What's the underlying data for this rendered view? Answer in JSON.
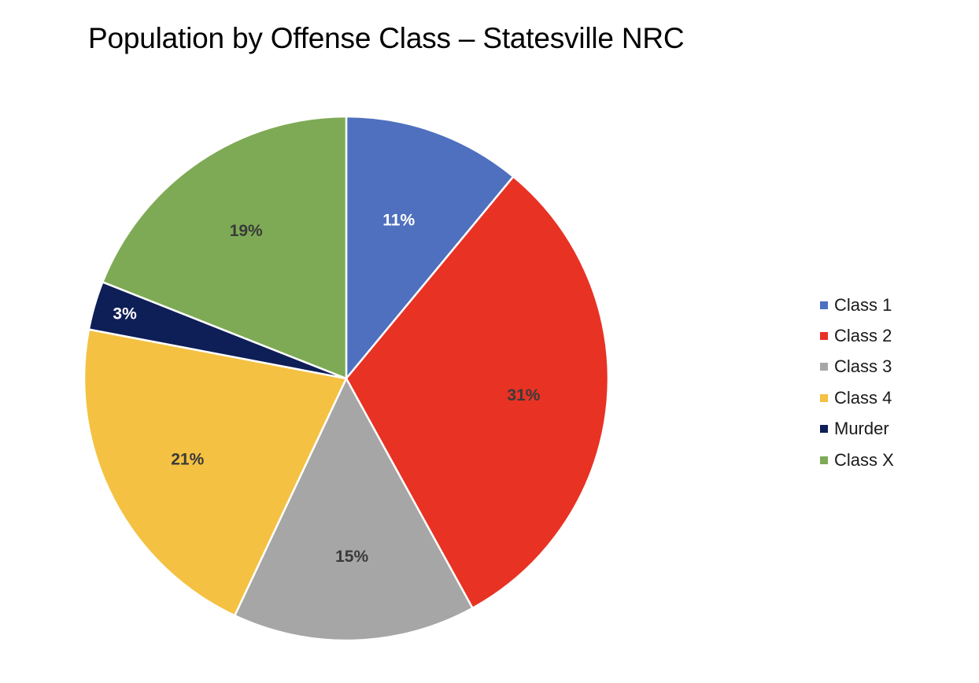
{
  "chart_data": {
    "type": "pie",
    "title": "Population by Offense Class – Statesville NRC",
    "legend_position": "right",
    "slices": [
      {
        "label": "Class 1",
        "value": 11,
        "display": "11%",
        "color": "#4F70BE",
        "label_color": "#ffffff"
      },
      {
        "label": "Class 2",
        "value": 31,
        "display": "31%",
        "color": "#E83224",
        "label_color": "#3a3a3a"
      },
      {
        "label": "Class 3",
        "value": 15,
        "display": "15%",
        "color": "#A6A6A6",
        "label_color": "#3a3a3a"
      },
      {
        "label": "Class 4",
        "value": 21,
        "display": "21%",
        "color": "#F4C142",
        "label_color": "#3a3a3a"
      },
      {
        "label": "Murder",
        "value": 3,
        "display": "3%",
        "color": "#0E1E56",
        "label_color": "#ffffff"
      },
      {
        "label": "Class X",
        "value": 19,
        "display": "19%",
        "color": "#7EAA55",
        "label_color": "#3a3a3a"
      }
    ]
  }
}
